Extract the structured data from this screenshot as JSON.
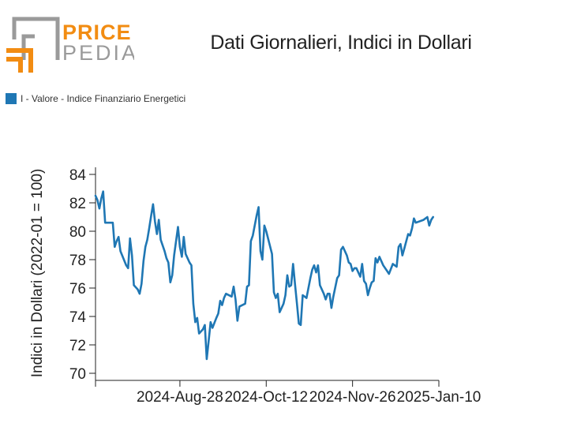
{
  "brand": {
    "line1": "PRICE",
    "line2": "PEDIA",
    "accent": "#f28c12",
    "gray": "#9a9a9a"
  },
  "chart_data": {
    "type": "line",
    "title": "Dati Giornalieri, Indici in Dollari",
    "ylabel": "Indici in Dollari (2022-01 = 100)",
    "xlabel": "",
    "ylim": [
      69.5,
      84.5
    ],
    "yticks": [
      70,
      72,
      74,
      76,
      78,
      80,
      82,
      84
    ],
    "xlim": [
      "2024-07-15",
      "2025-01-10"
    ],
    "xticks": [
      "2024-Aug-28",
      "2024-Oct-12",
      "2024-Nov-26",
      "2025-Jan-10"
    ],
    "grid": false,
    "legend_position": "top-left",
    "series": [
      {
        "name": "I - Valore - Indice Finanziario Energetici",
        "color": "#1f77b4",
        "points": [
          [
            "2024-07-15",
            82.5
          ],
          [
            "2024-07-16",
            82.2
          ],
          [
            "2024-07-17",
            81.6
          ],
          [
            "2024-07-18",
            82.3
          ],
          [
            "2024-07-19",
            82.8
          ],
          [
            "2024-07-20",
            80.6
          ],
          [
            "2024-07-23",
            80.6
          ],
          [
            "2024-07-24",
            80.6
          ],
          [
            "2024-07-25",
            78.9
          ],
          [
            "2024-07-26",
            79.3
          ],
          [
            "2024-07-27",
            79.6
          ],
          [
            "2024-07-28",
            78.6
          ],
          [
            "2024-07-31",
            77.6
          ],
          [
            "2024-08-01",
            77.4
          ],
          [
            "2024-08-02",
            79.5
          ],
          [
            "2024-08-03",
            78.3
          ],
          [
            "2024-08-04",
            76.2
          ],
          [
            "2024-08-06",
            75.9
          ],
          [
            "2024-08-07",
            75.6
          ],
          [
            "2024-08-08",
            76.3
          ],
          [
            "2024-08-09",
            77.9
          ],
          [
            "2024-08-10",
            78.9
          ],
          [
            "2024-08-11",
            79.4
          ],
          [
            "2024-08-12",
            80.2
          ],
          [
            "2024-08-13",
            81.1
          ],
          [
            "2024-08-14",
            81.9
          ],
          [
            "2024-08-15",
            80.7
          ],
          [
            "2024-08-16",
            79.8
          ],
          [
            "2024-08-17",
            80.8
          ],
          [
            "2024-08-18",
            79.4
          ],
          [
            "2024-08-20",
            78.6
          ],
          [
            "2024-08-21",
            78.1
          ],
          [
            "2024-08-22",
            77.8
          ],
          [
            "2024-08-23",
            76.4
          ],
          [
            "2024-08-24",
            76.9
          ],
          [
            "2024-08-25",
            78.3
          ],
          [
            "2024-08-27",
            80.3
          ],
          [
            "2024-08-28",
            78.9
          ],
          [
            "2024-08-29",
            78.2
          ],
          [
            "2024-08-30",
            79.6
          ],
          [
            "2024-08-31",
            78.4
          ],
          [
            "2024-09-02",
            77.8
          ],
          [
            "2024-09-03",
            77.6
          ],
          [
            "2024-09-04",
            74.9
          ],
          [
            "2024-09-05",
            73.6
          ],
          [
            "2024-09-06",
            73.9
          ],
          [
            "2024-09-07",
            72.8
          ],
          [
            "2024-09-09",
            73.1
          ],
          [
            "2024-09-10",
            73.4
          ],
          [
            "2024-09-11",
            71.0
          ],
          [
            "2024-09-12",
            72.3
          ],
          [
            "2024-09-13",
            73.6
          ],
          [
            "2024-09-14",
            73.2
          ],
          [
            "2024-09-16",
            73.9
          ],
          [
            "2024-09-17",
            74.2
          ],
          [
            "2024-09-18",
            75.1
          ],
          [
            "2024-09-19",
            74.8
          ],
          [
            "2024-09-20",
            75.3
          ],
          [
            "2024-09-21",
            75.6
          ],
          [
            "2024-09-24",
            75.4
          ],
          [
            "2024-09-25",
            76.1
          ],
          [
            "2024-09-26",
            75.2
          ],
          [
            "2024-09-27",
            73.7
          ],
          [
            "2024-09-28",
            74.7
          ],
          [
            "2024-10-01",
            74.9
          ],
          [
            "2024-10-02",
            76.1
          ],
          [
            "2024-10-03",
            76.2
          ],
          [
            "2024-10-04",
            79.3
          ],
          [
            "2024-10-05",
            79.7
          ],
          [
            "2024-10-07",
            81.1
          ],
          [
            "2024-10-08",
            81.7
          ],
          [
            "2024-10-09",
            78.6
          ],
          [
            "2024-10-10",
            78.0
          ],
          [
            "2024-10-11",
            80.4
          ],
          [
            "2024-10-12",
            80.0
          ],
          [
            "2024-10-15",
            78.4
          ],
          [
            "2024-10-16",
            75.7
          ],
          [
            "2024-10-17",
            75.3
          ],
          [
            "2024-10-18",
            75.6
          ],
          [
            "2024-10-19",
            74.3
          ],
          [
            "2024-10-21",
            74.9
          ],
          [
            "2024-10-22",
            75.5
          ],
          [
            "2024-10-23",
            76.9
          ],
          [
            "2024-10-24",
            76.1
          ],
          [
            "2024-10-25",
            76.2
          ],
          [
            "2024-10-26",
            77.7
          ],
          [
            "2024-10-27",
            76.3
          ],
          [
            "2024-10-28",
            74.9
          ],
          [
            "2024-10-29",
            73.5
          ],
          [
            "2024-10-30",
            73.4
          ],
          [
            "2024-10-31",
            75.5
          ],
          [
            "2024-11-02",
            75.3
          ],
          [
            "2024-11-04",
            76.7
          ],
          [
            "2024-11-05",
            77.3
          ],
          [
            "2024-11-06",
            77.6
          ],
          [
            "2024-11-07",
            77.1
          ],
          [
            "2024-11-08",
            77.6
          ],
          [
            "2024-11-09",
            76.2
          ],
          [
            "2024-11-11",
            75.6
          ],
          [
            "2024-11-12",
            75.2
          ],
          [
            "2024-11-13",
            75.6
          ],
          [
            "2024-11-14",
            75.6
          ],
          [
            "2024-11-15",
            74.6
          ],
          [
            "2024-11-16",
            75.4
          ],
          [
            "2024-11-18",
            76.7
          ],
          [
            "2024-11-19",
            76.9
          ],
          [
            "2024-11-20",
            78.7
          ],
          [
            "2024-11-21",
            78.9
          ],
          [
            "2024-11-23",
            78.3
          ],
          [
            "2024-11-24",
            77.8
          ],
          [
            "2024-11-25",
            77.7
          ],
          [
            "2024-11-26",
            77.2
          ],
          [
            "2024-11-27",
            77.4
          ],
          [
            "2024-11-28",
            77.4
          ],
          [
            "2024-11-30",
            76.8
          ],
          [
            "2024-12-01",
            77.7
          ],
          [
            "2024-12-02",
            76.5
          ],
          [
            "2024-12-03",
            76.3
          ],
          [
            "2024-12-04",
            75.5
          ],
          [
            "2024-12-05",
            76.0
          ],
          [
            "2024-12-06",
            76.4
          ],
          [
            "2024-12-07",
            76.5
          ],
          [
            "2024-12-08",
            78.1
          ],
          [
            "2024-12-09",
            77.8
          ],
          [
            "2024-12-10",
            78.2
          ],
          [
            "2024-12-12",
            77.6
          ],
          [
            "2024-12-14",
            77.2
          ],
          [
            "2024-12-15",
            77.0
          ],
          [
            "2024-12-17",
            77.7
          ],
          [
            "2024-12-19",
            77.5
          ],
          [
            "2024-12-20",
            78.9
          ],
          [
            "2024-12-21",
            79.1
          ],
          [
            "2024-12-22",
            78.3
          ],
          [
            "2024-12-23",
            78.8
          ],
          [
            "2024-12-24",
            79.3
          ],
          [
            "2024-12-25",
            79.8
          ],
          [
            "2024-12-26",
            79.7
          ],
          [
            "2024-12-27",
            80.2
          ],
          [
            "2024-12-28",
            80.9
          ],
          [
            "2024-12-29",
            80.6
          ],
          [
            "2025-01-02",
            80.8
          ],
          [
            "2025-01-04",
            81.0
          ],
          [
            "2025-01-05",
            80.4
          ],
          [
            "2025-01-06",
            80.8
          ],
          [
            "2025-01-07",
            81.0
          ]
        ]
      }
    ]
  }
}
